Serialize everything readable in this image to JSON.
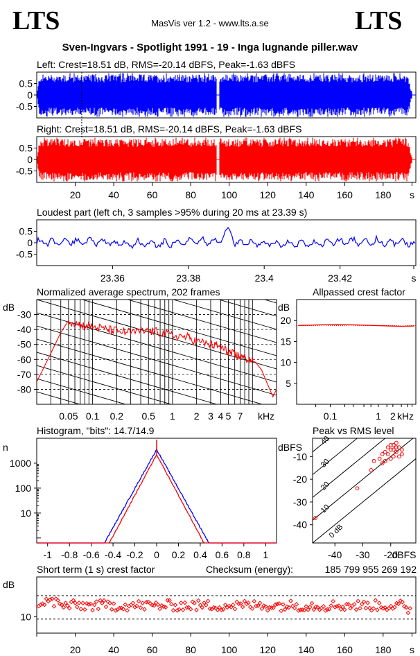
{
  "header": {
    "logo_left": "LTS",
    "logo_right": "LTS",
    "app_title": "MasVis ver 1.2 - www.lts.a.se",
    "track_title": "Sven-Ingvars - Spotlight 1991 - 19 - Inga lugnande piller.wav"
  },
  "chart_data": [
    {
      "id": "left",
      "type": "area",
      "title": "Left: Crest=18.51 dB, RMS=-20.14 dBFS, Peak=-1.63 dBFS",
      "y_ticks": [
        "0.5",
        "0",
        "-0.5"
      ],
      "ylim": [
        -1,
        1
      ],
      "xlim": [
        0,
        197
      ],
      "duration_s": 195,
      "marker_s": 23.39,
      "gap_s": [
        93.5,
        95.0
      ],
      "color": "#0000ff"
    },
    {
      "id": "right",
      "type": "area",
      "title": "Right: Crest=18.51 dB, RMS=-20.14 dBFS, Peak=-1.63 dBFS",
      "y_ticks": [
        "0.5",
        "0",
        "-0.5"
      ],
      "x_ticks": [
        "20",
        "40",
        "60",
        "80",
        "100",
        "120",
        "140",
        "160",
        "180",
        "s"
      ],
      "ylim": [
        -1,
        1
      ],
      "xlim": [
        0,
        197
      ],
      "color": "#ff0000"
    },
    {
      "id": "loudest",
      "type": "line",
      "title": "Loudest part (left ch, 3 samples >95% during 20 ms at 23.39 s)",
      "y_ticks": [
        "0.5",
        "0",
        "-0.5"
      ],
      "x_ticks": [
        "23.36",
        "23.38",
        "23.4",
        "23.42",
        "s"
      ],
      "xlim": [
        23.34,
        23.44
      ],
      "color": "#0000ff"
    },
    {
      "id": "spectrum",
      "type": "line",
      "title": "Normalized average spectrum, 202 frames",
      "ylabel": "dB",
      "y_ticks": [
        "-30",
        "-40",
        "-50",
        "-60",
        "-70",
        "-80"
      ],
      "x_ticks": [
        "0.05",
        "0.1",
        "0.2",
        "0.5",
        "1",
        "2",
        "3",
        "4",
        "5",
        "7",
        "kHz"
      ],
      "ylim": [
        -90,
        -20
      ],
      "x": [
        0.02,
        0.03,
        0.04,
        0.05,
        0.07,
        0.1,
        0.15,
        0.2,
        0.3,
        0.5,
        0.7,
        1,
        1.5,
        2,
        3,
        4,
        5,
        6,
        7,
        9,
        11,
        13,
        15,
        18,
        20
      ],
      "values": [
        -75,
        -56,
        -42,
        -34,
        -37,
        -38,
        -40,
        -41,
        -42,
        -41,
        -42,
        -44,
        -45,
        -48,
        -50,
        -52,
        -55,
        -57,
        -58,
        -60,
        -62,
        -67,
        -75,
        -85,
        -80
      ],
      "color": "#ff0000"
    },
    {
      "id": "allpassed",
      "type": "line",
      "title": "Allpassed crest factor",
      "ylabel": "dB",
      "y_ticks": [
        "20",
        "15",
        "10",
        "5"
      ],
      "x_ticks": [
        "0.1",
        "1",
        "2",
        "kHz"
      ],
      "ylim": [
        0,
        25
      ],
      "values": [
        18.8,
        18.9,
        19.0,
        19.1,
        19.0,
        18.9,
        18.8,
        18.7,
        18.6,
        18.7
      ],
      "color": "#ff0000"
    },
    {
      "id": "histogram",
      "type": "line",
      "title": "Histogram, \"bits\": 14.7/14.9",
      "ylabel": "n",
      "y_ticks": [
        "1000",
        "100",
        "10"
      ],
      "x_ticks": [
        "-1",
        "-0.8",
        "-0.6",
        "-0.4",
        "-0.2",
        "0",
        "0.2",
        "0.4",
        "0.6",
        "0.8",
        "1"
      ],
      "xlim": [
        -1.1,
        1.1
      ],
      "series": [
        {
          "color": "#0000ff",
          "peak_log10": 3.55,
          "spread": 0.115
        },
        {
          "color": "#ff0000",
          "peak_log10": 3.35,
          "spread": 0.11
        }
      ]
    },
    {
      "id": "peak_rms",
      "type": "scatter",
      "title": "Peak vs RMS level",
      "ylabel": "dBFS",
      "xlabel": "dBFS",
      "y_ticks": [
        "-10",
        "-20",
        "-30",
        "-40"
      ],
      "x_ticks": [
        "-40",
        "-30",
        "-20"
      ],
      "diag_labels": [
        "40",
        "30",
        "20",
        "10",
        "0 dB"
      ],
      "xlim": [
        -48,
        -11
      ],
      "ylim": [
        -48,
        -2
      ],
      "points": [
        [
          -47,
          -37
        ],
        [
          -32,
          -24
        ],
        [
          -27,
          -16
        ],
        [
          -26,
          -12
        ],
        [
          -24,
          -11
        ],
        [
          -23,
          -9
        ],
        [
          -22,
          -8
        ],
        [
          -21,
          -6
        ],
        [
          -20,
          -5
        ],
        [
          -19,
          -7
        ],
        [
          -18,
          -4
        ],
        [
          -17,
          -6
        ],
        [
          -21,
          -9
        ],
        [
          -20,
          -11
        ],
        [
          -19,
          -10
        ],
        [
          -22,
          -12
        ],
        [
          -18,
          -8
        ],
        [
          -17,
          -10
        ],
        [
          -16,
          -7
        ],
        [
          -20,
          -7
        ],
        [
          -19,
          -5
        ],
        [
          -23,
          -13
        ],
        [
          -18,
          -6
        ],
        [
          -16,
          -9
        ]
      ],
      "color": "#ff0000"
    },
    {
      "id": "short_crest",
      "type": "scatter",
      "title": "Short term (1 s) crest factor",
      "checksum_label": "Checksum (energy):",
      "checksum_value": "185 799 955 269 192",
      "ylabel": "dB",
      "y_ticks": [
        "10"
      ],
      "x_ticks": [
        "20",
        "40",
        "60",
        "80",
        "100",
        "120",
        "140",
        "160",
        "180",
        "s"
      ],
      "xlim": [
        0,
        197
      ],
      "ylim": [
        0,
        24
      ],
      "dashed_lines": [
        6,
        16
      ],
      "mean": 11.8,
      "color": "#ff0000"
    }
  ]
}
